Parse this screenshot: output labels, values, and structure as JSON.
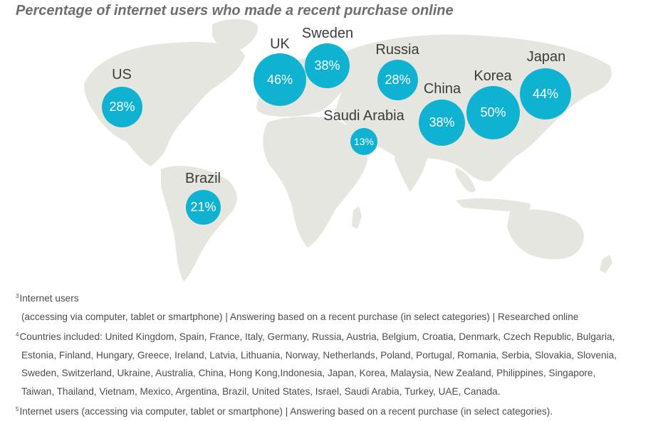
{
  "title": "Percentage of internet users who made a recent purchase online",
  "map": {
    "land_color": "#e6e6e0",
    "bubble_color": "#0fb2d1"
  },
  "markers": [
    {
      "name": "US",
      "value": "28%"
    },
    {
      "name": "UK",
      "value": "46%"
    },
    {
      "name": "Sweden",
      "value": "38%"
    },
    {
      "name": "Russia",
      "value": "28%"
    },
    {
      "name": "Japan",
      "value": "44%"
    },
    {
      "name": "Korea",
      "value": "50%"
    },
    {
      "name": "China",
      "value": "38%"
    },
    {
      "name": "Saudi Arabia",
      "value": "13%"
    },
    {
      "name": "Brazil",
      "value": "21%"
    }
  ],
  "footnotes": [
    {
      "mark": "3",
      "lines": [
        "Internet users",
        "(accessing via computer, tablet or smartphone) | Answering based on a recent purchase (in select categories) | Researched online"
      ]
    },
    {
      "mark": "4",
      "lines": [
        "Countries included: United Kingdom, Spain, France, Italy, Germany, Russia, Austria, Belgium, Croatia, Denmark, Czech Republic, Bulgaria,",
        "Estonia, Finland, Hungary, Greece, Ireland, Latvia, Lithuania, Norway, Netherlands, Poland, Portugal, Romania, Serbia, Slovakia, Slovenia,",
        "Sweden, Switzerland, Ukraine, Australia, China, Hong Kong,Indonesia, Japan, Korea, Malaysia, New Zealand, Philippines, Singapore,",
        "Taiwan, Thailand, Vietnam, Mexico, Argentina, Brazil, United States, Israel, Saudi Arabia, Turkey, UAE, Canada."
      ]
    },
    {
      "mark": "5",
      "lines": [
        "Internet users (accessing via computer, tablet or smartphone) | Answering based on a recent purchase (in select categories)."
      ]
    }
  ]
}
